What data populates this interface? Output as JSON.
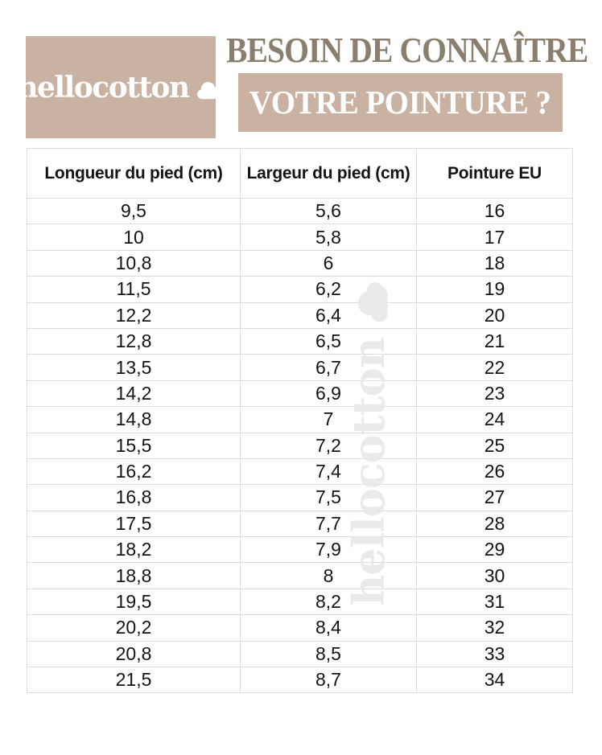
{
  "brand": {
    "logo_text": "hellocotton"
  },
  "header": {
    "title": "BESOIN DE CONNAÎTRE",
    "banner": "VOTRE POINTURE ?"
  },
  "watermark": {
    "text": "hellocotton"
  },
  "colors": {
    "beige": "#c9b2a2",
    "title_brown": "#8a7e6e",
    "table_border": "#dcdcdc",
    "watermark_gray": "#e8e8e8",
    "text_black": "#141414",
    "white": "#ffffff"
  },
  "chart_data": {
    "type": "table",
    "title": "BESOIN DE CONNAÎTRE VOTRE POINTURE ?",
    "columns": [
      "Longueur du pied (cm)",
      "Largeur du pied (cm)",
      "Pointure EU"
    ],
    "rows": [
      [
        "9,5",
        "5,6",
        "16"
      ],
      [
        "10",
        "5,8",
        "17"
      ],
      [
        "10,8",
        "6",
        "18"
      ],
      [
        "11,5",
        "6,2",
        "19"
      ],
      [
        "12,2",
        "6,4",
        "20"
      ],
      [
        "12,8",
        "6,5",
        "21"
      ],
      [
        "13,5",
        "6,7",
        "22"
      ],
      [
        "14,2",
        "6,9",
        "23"
      ],
      [
        "14,8",
        "7",
        "24"
      ],
      [
        "15,5",
        "7,2",
        "25"
      ],
      [
        "16,2",
        "7,4",
        "26"
      ],
      [
        "16,8",
        "7,5",
        "27"
      ],
      [
        "17,5",
        "7,7",
        "28"
      ],
      [
        "18,2",
        "7,9",
        "29"
      ],
      [
        "18,8",
        "8",
        "30"
      ],
      [
        "19,5",
        "8,2",
        "31"
      ],
      [
        "20,2",
        "8,4",
        "32"
      ],
      [
        "20,8",
        "8,5",
        "33"
      ],
      [
        "21,5",
        "8,7",
        "34"
      ]
    ]
  }
}
